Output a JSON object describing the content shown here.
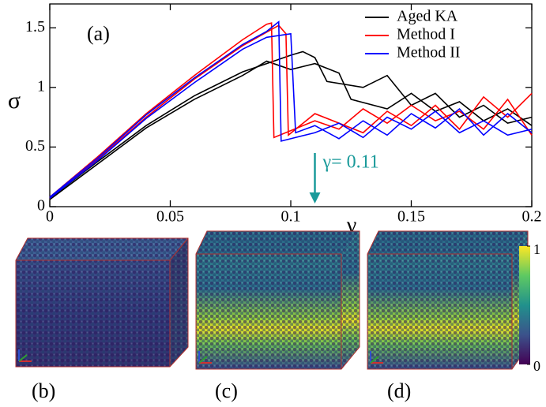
{
  "chart_data": {
    "type": "line",
    "panel_label": "(a)",
    "x_label": "γ",
    "y_label": "σ",
    "xlim": [
      0,
      0.2
    ],
    "ylim": [
      0,
      1.7
    ],
    "xticks": [
      0,
      0.05,
      0.1,
      0.15,
      0.2
    ],
    "yticks": [
      0,
      0.5,
      1,
      1.5
    ],
    "legend": "upper right",
    "annotation": {
      "text": "γ= 0.11",
      "x": 0.11,
      "color": "#1a9a9a"
    },
    "series": [
      {
        "name": "Aged KA",
        "color": "#000000",
        "runs": [
          {
            "x": [
              0,
              0.02,
              0.04,
              0.06,
              0.08,
              0.09,
              0.1,
              0.105,
              0.11,
              0.115,
              0.13,
              0.14,
              0.15,
              0.16,
              0.17,
              0.18,
              0.19,
              0.2
            ],
            "values": [
              0.07,
              0.38,
              0.68,
              0.93,
              1.13,
              1.2,
              1.27,
              1.3,
              1.25,
              1.05,
              1.0,
              1.1,
              0.85,
              0.95,
              0.75,
              0.85,
              0.7,
              0.75
            ]
          },
          {
            "x": [
              0,
              0.02,
              0.04,
              0.06,
              0.08,
              0.09,
              0.1,
              0.11,
              0.12,
              0.125,
              0.14,
              0.15,
              0.16,
              0.17,
              0.18,
              0.19,
              0.2
            ],
            "values": [
              0.06,
              0.36,
              0.66,
              0.9,
              1.1,
              1.22,
              1.15,
              1.2,
              1.12,
              0.9,
              0.82,
              0.95,
              0.8,
              0.88,
              0.72,
              0.82,
              0.68
            ]
          }
        ]
      },
      {
        "name": "Method I",
        "color": "#ff0000",
        "runs": [
          {
            "x": [
              0,
              0.02,
              0.04,
              0.06,
              0.08,
              0.09,
              0.092,
              0.093,
              0.11,
              0.12,
              0.13,
              0.14,
              0.15,
              0.16,
              0.17,
              0.18,
              0.19,
              0.2
            ],
            "values": [
              0.08,
              0.42,
              0.78,
              1.1,
              1.4,
              1.53,
              1.54,
              0.58,
              0.72,
              0.65,
              0.82,
              0.7,
              0.85,
              0.72,
              0.8,
              0.65,
              0.9,
              0.6
            ]
          },
          {
            "x": [
              0,
              0.02,
              0.04,
              0.06,
              0.08,
              0.095,
              0.098,
              0.099,
              0.11,
              0.12,
              0.13,
              0.14,
              0.15,
              0.16,
              0.17,
              0.18,
              0.19,
              0.2
            ],
            "values": [
              0.07,
              0.4,
              0.75,
              1.07,
              1.35,
              1.52,
              1.45,
              0.6,
              0.78,
              0.7,
              0.62,
              0.8,
              0.68,
              0.85,
              0.65,
              0.92,
              0.75,
              0.95
            ]
          }
        ]
      },
      {
        "name": "Method II",
        "color": "#0000ff",
        "runs": [
          {
            "x": [
              0,
              0.02,
              0.04,
              0.06,
              0.08,
              0.09,
              0.095,
              0.096,
              0.11,
              0.12,
              0.13,
              0.14,
              0.15,
              0.16,
              0.17,
              0.18,
              0.19,
              0.2
            ],
            "values": [
              0.08,
              0.41,
              0.77,
              1.08,
              1.36,
              1.47,
              1.55,
              0.55,
              0.62,
              0.7,
              0.58,
              0.75,
              0.65,
              0.8,
              0.62,
              0.72,
              0.6,
              0.65
            ]
          },
          {
            "x": [
              0,
              0.02,
              0.04,
              0.06,
              0.08,
              0.09,
              0.1,
              0.102,
              0.11,
              0.12,
              0.13,
              0.14,
              0.15,
              0.16,
              0.17,
              0.18,
              0.19,
              0.2
            ],
            "values": [
              0.07,
              0.39,
              0.74,
              1.04,
              1.32,
              1.42,
              1.45,
              0.62,
              0.68,
              0.57,
              0.72,
              0.6,
              0.78,
              0.66,
              0.82,
              0.6,
              0.78,
              0.62
            ]
          }
        ]
      }
    ]
  },
  "panels": [
    "(b)",
    "(c)",
    "(d)"
  ],
  "colorbar": {
    "ticks": [
      0,
      1
    ]
  }
}
